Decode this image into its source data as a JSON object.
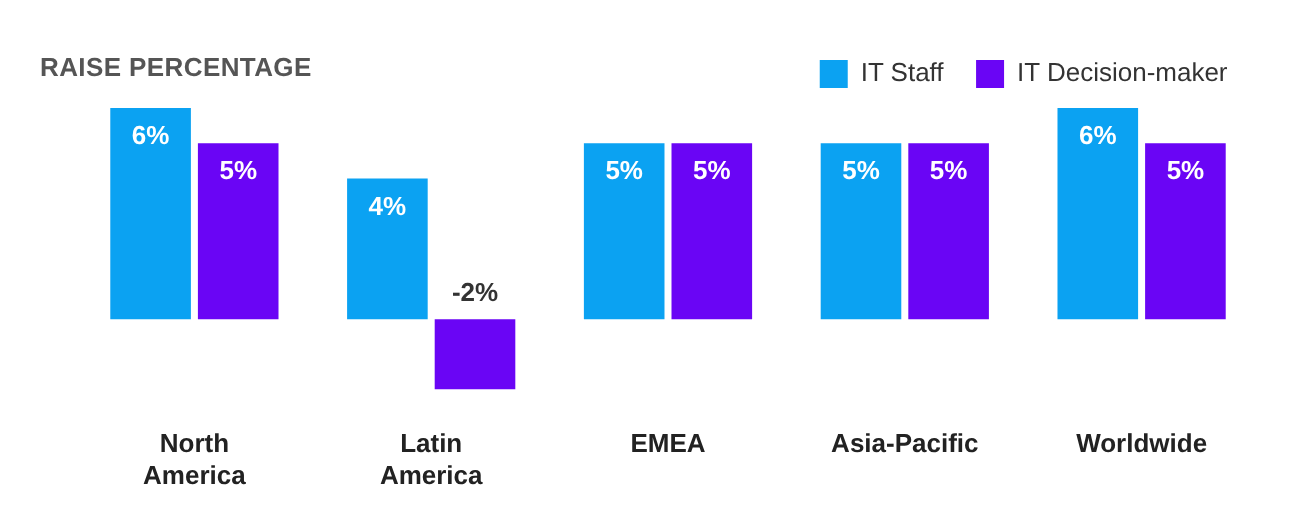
{
  "chart_data": {
    "type": "bar",
    "title": "RAISE PERCENTAGE",
    "legend": "top right",
    "categories": [
      "North America",
      "Latin America",
      "EMEA",
      "Asia-Pacific",
      "Worldwide"
    ],
    "series": [
      {
        "name": "IT Staff",
        "color": "#0ba2f2",
        "values": [
          6,
          4,
          5,
          5,
          6
        ],
        "value_labels": [
          "6%",
          "4%",
          "5%",
          "5%",
          "6%"
        ]
      },
      {
        "name": "IT Decision-maker",
        "color": "#6a05f5",
        "values": [
          5,
          -2,
          5,
          5,
          5
        ],
        "value_labels": [
          "5%",
          "-2%",
          "5%",
          "5%",
          "5%"
        ]
      }
    ]
  }
}
